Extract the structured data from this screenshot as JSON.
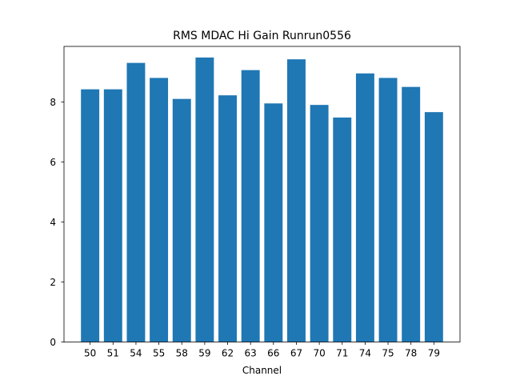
{
  "chart_data": {
    "type": "bar",
    "title": "RMS MDAC Hi Gain Runrun0556",
    "xlabel": "Channel",
    "ylabel": "",
    "categories": [
      "50",
      "51",
      "54",
      "55",
      "58",
      "59",
      "62",
      "63",
      "66",
      "67",
      "70",
      "71",
      "74",
      "75",
      "78",
      "79"
    ],
    "values": [
      8.42,
      8.42,
      9.3,
      8.8,
      8.1,
      9.48,
      8.22,
      9.06,
      7.95,
      9.42,
      7.9,
      7.48,
      8.95,
      8.8,
      8.5,
      7.66
    ],
    "ylim": [
      0,
      9.85
    ],
    "yticks": [
      0,
      2,
      4,
      6,
      8
    ],
    "grid": false,
    "legend": "none",
    "bar_color": "#1f77b4"
  }
}
